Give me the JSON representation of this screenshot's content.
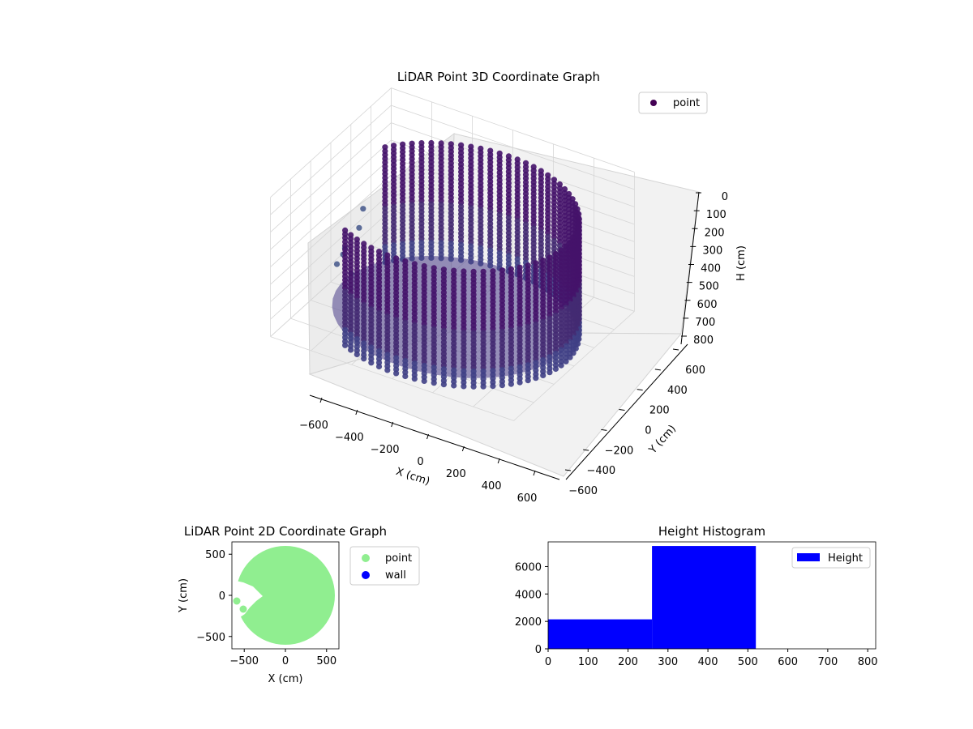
{
  "chart_data": [
    {
      "type": "scatter3d",
      "title": "LiDAR Point 3D Coordinate Graph",
      "xlabel": "X (cm)",
      "ylabel": "Y (cm)",
      "zlabel": "H (cm)",
      "x_ticks": [
        "−600",
        "−400",
        "−200",
        "0",
        "200",
        "400",
        "600"
      ],
      "y_ticks": [
        "−600",
        "−400",
        "−200",
        "0",
        "200",
        "400",
        "600"
      ],
      "z_ticks": [
        "0",
        "100",
        "200",
        "300",
        "400",
        "500",
        "600",
        "700",
        "800"
      ],
      "xlim": [
        -600,
        600
      ],
      "ylim": [
        -600,
        600
      ],
      "zlim": [
        0,
        800
      ],
      "z_inverted": true,
      "legend": [
        {
          "label": "point",
          "color": "#440154"
        }
      ],
      "legend_placement": "top-right",
      "grid": true,
      "colormap": "viridis",
      "shape": {
        "description_cm": "cylindrical wall of points",
        "radius": 560,
        "height_range": [
          130,
          800
        ],
        "gap_angle_range_deg": [
          150,
          235
        ]
      }
    },
    {
      "type": "scatter",
      "title": "LiDAR Point 2D Coordinate Graph",
      "xlabel": "X (cm)",
      "ylabel": "Y (cm)",
      "x_ticks": [
        "−500",
        "0",
        "500"
      ],
      "y_ticks": [
        "−500",
        "0",
        "500"
      ],
      "xlim": [
        -650,
        650
      ],
      "ylim": [
        -650,
        650
      ],
      "series": [
        {
          "name": "point",
          "color": "#90ee90",
          "shape": "filled disc",
          "radius": 600
        },
        {
          "name": "wall",
          "color": "#0000ff",
          "values": []
        }
      ],
      "legend_placement": "outside right"
    },
    {
      "type": "histogram",
      "title": "Height Histogram",
      "bins": [
        0,
        260,
        520,
        780
      ],
      "values": [
        2150,
        7500,
        0
      ],
      "xlim": [
        0,
        820
      ],
      "ylim": [
        0,
        7800
      ],
      "x_ticks": [
        "0",
        "100",
        "200",
        "300",
        "400",
        "500",
        "600",
        "700",
        "800"
      ],
      "y_ticks": [
        "0",
        "2000",
        "4000",
        "6000"
      ],
      "series": [
        {
          "name": "Height",
          "color": "#0000ff"
        }
      ],
      "legend_placement": "top-right"
    }
  ]
}
